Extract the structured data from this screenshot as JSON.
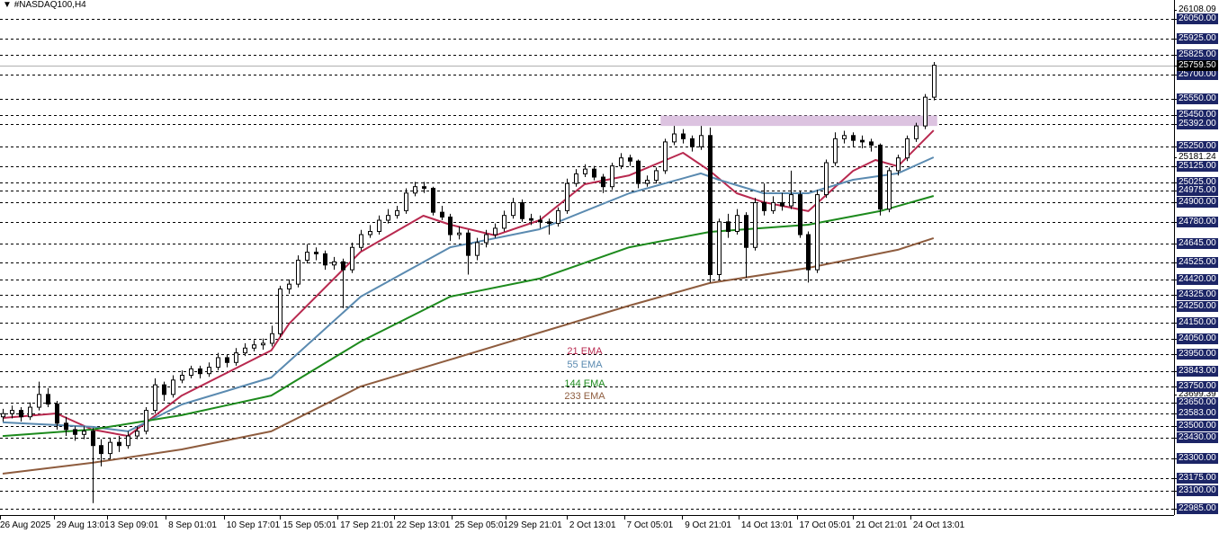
{
  "header": {
    "title": "#NASDAQ100,H4",
    "menu_icon": "triangle-down-icon"
  },
  "colors": {
    "ema21": "#b8294f",
    "ema55": "#5a8ab0",
    "ema144": "#1d8a1d",
    "ema233": "#8e5c3e",
    "zone": "#dcc3e0",
    "label_bg": "#1c2566",
    "bull": "#ffffff",
    "bear": "#000000"
  },
  "legend": [
    {
      "label": "21 EMA",
      "key": "ema21"
    },
    {
      "label": "55 EMA",
      "key": "ema55"
    },
    {
      "label": "144 EMA",
      "key": "ema144"
    },
    {
      "label": "233 EMA",
      "key": "ema233"
    }
  ],
  "price_axis": {
    "levels": [
      "26050.00",
      "25925.00",
      "25825.00",
      "25700.00",
      "25550.00",
      "25450.00",
      "25392.00",
      "25250.00",
      "25125.00",
      "25025.00",
      "24975.00",
      "24900.00",
      "24780.00",
      "24645.00",
      "24525.00",
      "24420.00",
      "24325.00",
      "24250.00",
      "24150.00",
      "24050.00",
      "23950.00",
      "23843.00",
      "23750.00",
      "23650.00",
      "23583.00",
      "23500.00",
      "23430.00",
      "23300.00",
      "23175.00",
      "23100.00",
      "22985.00"
    ],
    "current_price": "25759.50",
    "other_labels": [
      "26108.09",
      "25181.24",
      "23699.39"
    ]
  },
  "time_axis": [
    {
      "label": "26 Aug 2025",
      "bar": 0
    },
    {
      "label": "29 Aug 13:01",
      "bar": 6
    },
    {
      "label": "3 Sep 09:01",
      "bar": 12
    },
    {
      "label": "8 Sep 01:01",
      "bar": 18.5
    },
    {
      "label": "10 Sep 17:01",
      "bar": 25
    },
    {
      "label": "15 Sep 05:01",
      "bar": 31.3
    },
    {
      "label": "17 Sep 21:01",
      "bar": 37.7
    },
    {
      "label": "22 Sep 13:01",
      "bar": 44
    },
    {
      "label": "25 Sep 05:01",
      "bar": 50.5
    },
    {
      "label": "29 Sep 21:01",
      "bar": 56.5
    },
    {
      "label": "2 Oct 13:01",
      "bar": 63.3
    },
    {
      "label": "7 Oct 05:01",
      "bar": 69.7
    },
    {
      "label": "9 Oct 21:01",
      "bar": 76.2
    },
    {
      "label": "14 Oct 13:01",
      "bar": 82.5
    },
    {
      "label": "17 Oct 05:01",
      "bar": 89
    },
    {
      "label": "21 Oct 21:01",
      "bar": 95.3
    },
    {
      "label": "24 Oct 13:01",
      "bar": 101.7
    }
  ],
  "chart_data": {
    "type": "candlestick",
    "symbol": "#NASDAQ100",
    "timeframe": "H4",
    "ylim": [
      22940,
      26170
    ],
    "grid": "dashed horizontal at price labels",
    "zone": {
      "from_bar": 73.5,
      "to_bar": 104.4,
      "low": 25380,
      "high": 25445
    },
    "ohlc": [
      [
        23560,
        23610,
        23530,
        23580
      ],
      [
        23580,
        23630,
        23550,
        23600
      ],
      [
        23600,
        23620,
        23530,
        23560
      ],
      [
        23560,
        23650,
        23540,
        23620
      ],
      [
        23620,
        23780,
        23600,
        23700
      ],
      [
        23700,
        23740,
        23620,
        23640
      ],
      [
        23640,
        23660,
        23480,
        23520
      ],
      [
        23520,
        23560,
        23440,
        23480
      ],
      [
        23480,
        23500,
        23410,
        23450
      ],
      [
        23450,
        23500,
        23420,
        23470
      ],
      [
        23470,
        23490,
        23020,
        23380
      ],
      [
        23380,
        23420,
        23250,
        23330
      ],
      [
        23330,
        23430,
        23300,
        23400
      ],
      [
        23400,
        23440,
        23340,
        23380
      ],
      [
        23380,
        23470,
        23360,
        23440
      ],
      [
        23440,
        23500,
        23420,
        23470
      ],
      [
        23470,
        23620,
        23450,
        23600
      ],
      [
        23600,
        23800,
        23580,
        23760
      ],
      [
        23760,
        23780,
        23660,
        23700
      ],
      [
        23700,
        23820,
        23680,
        23790
      ],
      [
        23790,
        23850,
        23770,
        23820
      ],
      [
        23820,
        23880,
        23800,
        23860
      ],
      [
        23860,
        23880,
        23800,
        23830
      ],
      [
        23830,
        23900,
        23810,
        23870
      ],
      [
        23870,
        23960,
        23850,
        23930
      ],
      [
        23930,
        23950,
        23870,
        23900
      ],
      [
        23900,
        23990,
        23880,
        23960
      ],
      [
        23960,
        24020,
        23940,
        23990
      ],
      [
        23990,
        24040,
        23970,
        24010
      ],
      [
        24010,
        24050,
        23980,
        24020
      ],
      [
        24020,
        24130,
        24000,
        24080
      ],
      [
        24080,
        24380,
        24060,
        24360
      ],
      [
        24360,
        24420,
        24330,
        24390
      ],
      [
        24390,
        24570,
        24370,
        24540
      ],
      [
        24540,
        24640,
        24520,
        24590
      ],
      [
        24590,
        24620,
        24540,
        24580
      ],
      [
        24580,
        24600,
        24480,
        24510
      ],
      [
        24510,
        24560,
        24480,
        24530
      ],
      [
        24530,
        24550,
        24240,
        24480
      ],
      [
        24480,
        24650,
        24460,
        24620
      ],
      [
        24620,
        24730,
        24600,
        24700
      ],
      [
        24700,
        24760,
        24680,
        24720
      ],
      [
        24720,
        24820,
        24700,
        24790
      ],
      [
        24790,
        24860,
        24770,
        24820
      ],
      [
        24820,
        24880,
        24800,
        24850
      ],
      [
        24850,
        24990,
        24830,
        24960
      ],
      [
        24960,
        25030,
        24940,
        25000
      ],
      [
        25000,
        25030,
        24960,
        24990
      ],
      [
        24990,
        25000,
        24820,
        24840
      ],
      [
        24840,
        24880,
        24790,
        24810
      ],
      [
        24810,
        24830,
        24660,
        24700
      ],
      [
        24700,
        24750,
        24670,
        24710
      ],
      [
        24710,
        24730,
        24450,
        24570
      ],
      [
        24570,
        24680,
        24540,
        24650
      ],
      [
        24650,
        24730,
        24620,
        24700
      ],
      [
        24700,
        24770,
        24680,
        24740
      ],
      [
        24740,
        24850,
        24720,
        24820
      ],
      [
        24820,
        24930,
        24800,
        24900
      ],
      [
        24900,
        24920,
        24780,
        24800
      ],
      [
        24800,
        24830,
        24760,
        24790
      ],
      [
        24790,
        24820,
        24740,
        24780
      ],
      [
        24780,
        24800,
        24700,
        24770
      ],
      [
        24770,
        24870,
        24750,
        24850
      ],
      [
        24850,
        25050,
        24830,
        25020
      ],
      [
        25020,
        25110,
        25000,
        25080
      ],
      [
        25080,
        25140,
        25060,
        25110
      ],
      [
        25110,
        25130,
        25040,
        25060
      ],
      [
        25060,
        25080,
        24960,
        25000
      ],
      [
        25000,
        25150,
        24980,
        25130
      ],
      [
        25130,
        25210,
        25110,
        25180
      ],
      [
        25180,
        25200,
        25130,
        25160
      ],
      [
        25160,
        25170,
        24990,
        25020
      ],
      [
        25020,
        25070,
        25000,
        25040
      ],
      [
        25040,
        25120,
        25020,
        25100
      ],
      [
        25100,
        25300,
        25080,
        25280
      ],
      [
        25280,
        25380,
        25260,
        25330
      ],
      [
        25330,
        25360,
        25270,
        25300
      ],
      [
        25300,
        25320,
        25220,
        25250
      ],
      [
        25250,
        25380,
        25230,
        25320
      ],
      [
        25320,
        25370,
        24400,
        24450
      ],
      [
        24450,
        24800,
        24420,
        24780
      ],
      [
        24780,
        24830,
        24680,
        24720
      ],
      [
        24720,
        24860,
        24700,
        24820
      ],
      [
        24820,
        24840,
        24430,
        24620
      ],
      [
        24620,
        24930,
        24600,
        24900
      ],
      [
        24900,
        25020,
        24820,
        24850
      ],
      [
        24850,
        24940,
        24830,
        24900
      ],
      [
        24900,
        24960,
        24850,
        24880
      ],
      [
        24880,
        25100,
        24860,
        24950
      ],
      [
        24950,
        24970,
        24680,
        24700
      ],
      [
        24700,
        24720,
        24400,
        24480
      ],
      [
        24480,
        24980,
        24460,
        24950
      ],
      [
        24950,
        25170,
        24930,
        25150
      ],
      [
        25150,
        25340,
        25130,
        25300
      ],
      [
        25300,
        25350,
        25270,
        25320
      ],
      [
        25320,
        25340,
        25250,
        25290
      ],
      [
        25290,
        25320,
        25240,
        25280
      ],
      [
        25280,
        25300,
        25220,
        25260
      ],
      [
        25260,
        25270,
        24820,
        24860
      ],
      [
        24860,
        25120,
        24840,
        25100
      ],
      [
        25100,
        25200,
        25070,
        25180
      ],
      [
        25180,
        25320,
        25160,
        25300
      ],
      [
        25300,
        25400,
        25280,
        25380
      ],
      [
        25380,
        25580,
        25360,
        25560
      ],
      [
        25560,
        25780,
        25540,
        25759.5
      ]
    ],
    "ema": {
      "ema21": [
        [
          0,
          23553
        ],
        [
          6,
          23581
        ],
        [
          10,
          23480
        ],
        [
          14,
          23440
        ],
        [
          20,
          23693
        ],
        [
          30,
          23975
        ],
        [
          32,
          24143
        ],
        [
          40,
          24593
        ],
        [
          47,
          24818
        ],
        [
          50,
          24762
        ],
        [
          55,
          24695
        ],
        [
          60,
          24790
        ],
        [
          65,
          25015
        ],
        [
          70,
          25071
        ],
        [
          76,
          25212
        ],
        [
          79,
          25099
        ],
        [
          82,
          24959
        ],
        [
          85,
          24903
        ],
        [
          90,
          24847
        ],
        [
          95,
          25099
        ],
        [
          97.5,
          25167
        ],
        [
          100,
          25127
        ],
        [
          104,
          25352
        ]
      ],
      "ema55": [
        [
          0,
          23525
        ],
        [
          10,
          23497
        ],
        [
          14,
          23469
        ],
        [
          20,
          23637
        ],
        [
          30,
          23806
        ],
        [
          40,
          24312
        ],
        [
          50,
          24621
        ],
        [
          60,
          24734
        ],
        [
          70,
          24959
        ],
        [
          78,
          25083
        ],
        [
          80,
          25043
        ],
        [
          85,
          24959
        ],
        [
          90,
          24959
        ],
        [
          95,
          25043
        ],
        [
          100,
          25083
        ],
        [
          104,
          25184
        ]
      ],
      "ema144": [
        [
          0,
          23440
        ],
        [
          10,
          23480
        ],
        [
          20,
          23570
        ],
        [
          30,
          23693
        ],
        [
          40,
          24031
        ],
        [
          50,
          24312
        ],
        [
          60,
          24425
        ],
        [
          70,
          24621
        ],
        [
          79,
          24717
        ],
        [
          90,
          24762
        ],
        [
          98,
          24847
        ],
        [
          104,
          24942
        ]
      ],
      "ema233": [
        [
          0,
          23204
        ],
        [
          10,
          23272
        ],
        [
          20,
          23356
        ],
        [
          30,
          23469
        ],
        [
          40,
          23750
        ],
        [
          50,
          23918
        ],
        [
          60,
          24087
        ],
        [
          70,
          24256
        ],
        [
          79,
          24397
        ],
        [
          90,
          24492
        ],
        [
          100,
          24605
        ],
        [
          104,
          24678
        ]
      ]
    }
  }
}
